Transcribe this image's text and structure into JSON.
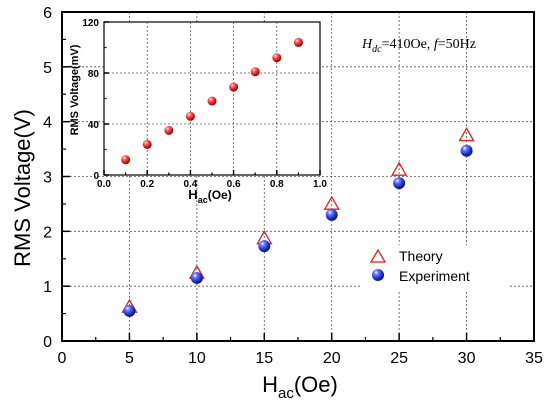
{
  "chart_data": [
    {
      "type": "scatter",
      "xlabel_main": "H",
      "xlabel_sub": "ac",
      "xlabel_unit": "(Oe)",
      "ylabel": "RMS Voltage(V)",
      "xlim": [
        0,
        35
      ],
      "ylim": [
        0,
        6
      ],
      "xticks": [
        "0",
        "5",
        "10",
        "15",
        "20",
        "25",
        "30",
        "35"
      ],
      "yticks": [
        "0",
        "1",
        "2",
        "3",
        "4",
        "5",
        "6"
      ],
      "grid": true,
      "legend_position": "bottom-right",
      "annotation": {
        "h": "H",
        "h_sub": "dc",
        "value": "=410Oe, ",
        "f": "f",
        "f_value": "=50Hz"
      },
      "series": [
        {
          "name": "Theory",
          "marker": "triangle-open",
          "color": "#e02020",
          "x": [
            5,
            10,
            15,
            20,
            25,
            30
          ],
          "y": [
            0.62,
            1.24,
            1.87,
            2.5,
            3.12,
            3.75
          ]
        },
        {
          "name": "Experiment",
          "marker": "sphere",
          "color": "#1a2fd6",
          "x": [
            5,
            10,
            15,
            20,
            25,
            30
          ],
          "y": [
            0.55,
            1.15,
            1.73,
            2.3,
            2.88,
            3.47
          ]
        }
      ]
    },
    {
      "type": "scatter",
      "placement": "inset-top-left",
      "xlabel_main": "H",
      "xlabel_sub": "ac",
      "xlabel_unit": "(Oe)",
      "ylabel": "RMS Voltage(mV)",
      "xlim": [
        0,
        1.0
      ],
      "ylim": [
        0,
        120
      ],
      "xticks": [
        "0.0",
        "0.2",
        "0.4",
        "0.6",
        "0.8",
        "1.0"
      ],
      "yticks": [
        "0",
        "40",
        "80",
        "120"
      ],
      "grid": true,
      "series": [
        {
          "marker": "sphere",
          "color": "#e01818",
          "x": [
            0.1,
            0.2,
            0.3,
            0.4,
            0.5,
            0.6,
            0.7,
            0.8,
            0.9
          ],
          "y": [
            12,
            24,
            35,
            46,
            58,
            69,
            81,
            92,
            104
          ]
        }
      ]
    }
  ]
}
